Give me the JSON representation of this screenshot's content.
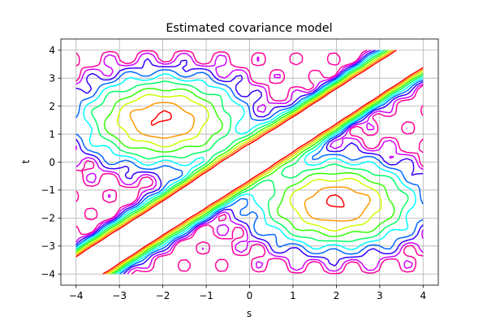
{
  "chart_data": {
    "type": "contour",
    "title": "Estimated covariance model",
    "xlabel": "s",
    "ylabel": "t",
    "xlim": [
      -4.35,
      4.35
    ],
    "ylim": [
      -4.4,
      4.4
    ],
    "xticks": [
      -4,
      -3,
      -2,
      -1,
      0,
      1,
      2,
      3,
      4
    ],
    "yticks": [
      -4,
      -3,
      -2,
      -1,
      0,
      1,
      2,
      3,
      4
    ],
    "grid": true,
    "domain": {
      "s": [
        -4,
        4
      ],
      "t": [
        -4,
        4
      ]
    },
    "resolution": 64,
    "colormap": "hsv",
    "level_colors": [
      "#ff0000",
      "#ff9900",
      "#ccff00",
      "#33ff00",
      "#00ff66",
      "#00ffff",
      "#0066ff",
      "#3300ff",
      "#cc00ff",
      "#ff0099"
    ],
    "function": "Estimated covariance C(s,t): diagonal ridge along s = t, with lower lobes near (-2, 1.5) and (2, -1.5)",
    "peaks": [
      {
        "s": -2.0,
        "t": 1.5
      },
      {
        "s": 2.0,
        "t": -1.5
      }
    ]
  }
}
